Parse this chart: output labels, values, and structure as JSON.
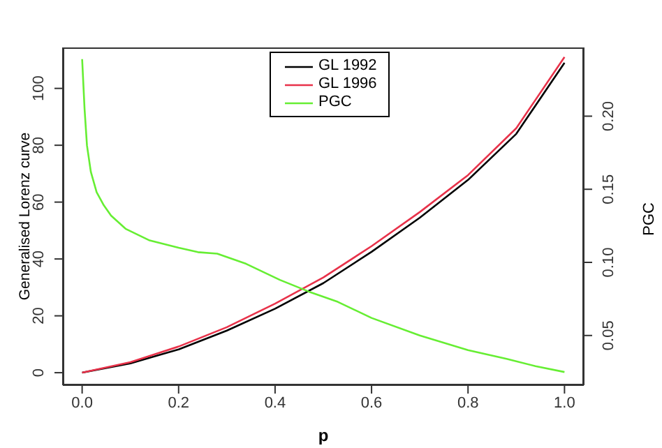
{
  "chart_data": {
    "type": "line",
    "xlabel": "p",
    "ylabel": "Generalised Lorenz curve",
    "y2label": "PGC",
    "xlim": [
      -0.04,
      1.04
    ],
    "xticks": [
      {
        "value": 0,
        "label": "0.0"
      },
      0.2,
      0.4,
      0.6,
      0.8,
      {
        "value": 1,
        "label": "1.0"
      }
    ],
    "ylim": [
      -4.4,
      114.4
    ],
    "yticks": [
      0,
      20,
      40,
      60,
      80,
      100
    ],
    "y2lim": [
      0.016,
      0.247
    ],
    "y2ticks": [
      0.05,
      {
        "value": 0.1,
        "label": "0.10"
      },
      0.15,
      {
        "value": 0.2,
        "label": "0.20"
      }
    ],
    "legend": "top",
    "line_style": "solid",
    "series": [
      {
        "name": "GL 1992",
        "color": "#000000",
        "x": [
          0,
          0.1,
          0.2,
          0.3,
          0.4,
          0.5,
          0.6,
          0.7,
          0.8,
          0.9,
          1.0
        ],
        "values": [
          0,
          3.3,
          8.2,
          14.8,
          22.5,
          31.5,
          42.5,
          54.5,
          67.8,
          84,
          109
        ]
      },
      {
        "name": "GL 1996",
        "color": "#e8324a",
        "x": [
          0,
          0.1,
          0.2,
          0.3,
          0.4,
          0.5,
          0.6,
          0.7,
          0.8,
          0.9,
          1.0
        ],
        "values": [
          0,
          3.7,
          9.2,
          16,
          24.3,
          33.5,
          44.5,
          56.5,
          69.5,
          86,
          111
        ]
      },
      {
        "name": "PGC",
        "color": "#66ee33",
        "axis": "y2",
        "x": [
          0,
          0.005,
          0.01,
          0.018,
          0.03,
          0.045,
          0.06,
          0.09,
          0.14,
          0.2,
          0.24,
          0.28,
          0.34,
          0.41,
          0.47,
          0.53,
          0.6,
          0.7,
          0.8,
          0.88,
          0.94,
          1.0
        ],
        "values": [
          0.239,
          0.205,
          0.18,
          0.162,
          0.148,
          0.139,
          0.132,
          0.123,
          0.115,
          0.11,
          0.107,
          0.106,
          0.099,
          0.088,
          0.08,
          0.073,
          0.062,
          0.05,
          0.04,
          0.034,
          0.029,
          0.025
        ]
      }
    ]
  }
}
